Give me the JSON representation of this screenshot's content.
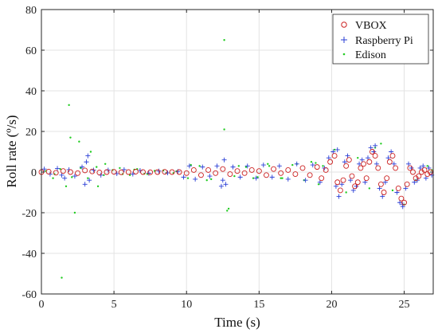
{
  "chart_data": {
    "type": "scatter",
    "xlabel": "Time (s)",
    "ylabel": "Roll rate (º/s)",
    "xlim": [
      0,
      27
    ],
    "ylim": [
      -60,
      80
    ],
    "xticks": [
      0,
      5,
      10,
      15,
      20,
      25
    ],
    "yticks": [
      -60,
      -40,
      -20,
      0,
      20,
      40,
      60,
      80
    ],
    "xtick_labels": [
      "0",
      "5",
      "10",
      "15",
      "20",
      "25"
    ],
    "ytick_labels": [
      "-60",
      "-40",
      "-20",
      "0",
      "20",
      "40",
      "60",
      "80"
    ],
    "grid": true,
    "legend_position": "top-right",
    "series": [
      {
        "name": "VBOX",
        "marker": "circle",
        "color": "#cc2222",
        "x": [
          0.0,
          0.5,
          1.0,
          1.5,
          2.0,
          2.5,
          3.0,
          3.5,
          4.0,
          4.5,
          5.0,
          5.5,
          6.0,
          6.5,
          7.0,
          7.5,
          8.0,
          8.5,
          9.0,
          9.5,
          10.0,
          10.5,
          11.0,
          11.5,
          12.0,
          12.5,
          13.0,
          13.5,
          14.0,
          14.5,
          15.0,
          15.5,
          16.0,
          16.5,
          17.0,
          17.5,
          18.0,
          18.5,
          19.0,
          19.3,
          19.6,
          19.9,
          20.2,
          20.4,
          20.6,
          20.8,
          21.0,
          21.2,
          21.4,
          21.6,
          21.8,
          22.0,
          22.2,
          22.4,
          22.6,
          22.8,
          23.0,
          23.2,
          23.4,
          23.6,
          23.8,
          24.0,
          24.2,
          24.4,
          24.6,
          24.8,
          25.0,
          25.2,
          25.4,
          25.6,
          25.8,
          26.0,
          26.2,
          26.4,
          26.6,
          26.8
        ],
        "y": [
          0.0,
          0.2,
          -0.3,
          0.5,
          0.0,
          -0.5,
          0.8,
          0.3,
          -0.2,
          0.0,
          0.1,
          -0.1,
          0.0,
          0.2,
          0.0,
          -0.1,
          0.0,
          0.1,
          0.0,
          0.0,
          -0.5,
          1.0,
          -1.5,
          1.0,
          -0.5,
          1.5,
          -1.0,
          0.5,
          -0.5,
          1.0,
          0.5,
          -1.5,
          1.5,
          -0.5,
          1.0,
          -1.0,
          2.0,
          -1.5,
          2.5,
          -3.0,
          1.0,
          5.0,
          8.0,
          -5.0,
          -9.0,
          -4.0,
          3.0,
          6.0,
          -2.0,
          -7.0,
          -5.0,
          2.0,
          4.0,
          -3.0,
          5.0,
          10.0,
          8.0,
          2.0,
          -6.0,
          -10.0,
          -3.0,
          5.0,
          8.0,
          2.0,
          -8.0,
          -13.0,
          -15.0,
          -6.0,
          2.0,
          0.0,
          -3.0,
          -2.0,
          0.0,
          1.0,
          -1.0,
          0.0
        ]
      },
      {
        "name": "Raspberry Pi",
        "marker": "plus",
        "color": "#2a3fd6",
        "x": [
          0.2,
          0.6,
          1.1,
          1.4,
          1.9,
          2.3,
          2.8,
          3.1,
          3.3,
          3.6,
          4.1,
          4.6,
          5.2,
          5.7,
          6.3,
          6.8,
          7.4,
          8.1,
          8.7,
          9.4,
          9.8,
          10.2,
          10.6,
          11.1,
          11.6,
          12.1,
          12.5,
          12.7,
          13.2,
          13.7,
          14.2,
          14.8,
          15.3,
          15.9,
          16.4,
          17.0,
          17.6,
          18.2,
          18.7,
          19.2,
          19.5,
          19.8,
          20.1,
          20.3,
          20.5,
          20.7,
          20.9,
          21.1,
          21.3,
          21.5,
          21.7,
          21.9,
          22.1,
          22.3,
          22.5,
          22.7,
          22.9,
          23.1,
          23.3,
          23.5,
          23.7,
          23.9,
          24.1,
          24.3,
          24.5,
          24.7,
          24.9,
          25.1,
          25.3,
          25.5,
          25.7,
          25.9,
          26.1,
          26.3,
          26.5,
          26.7,
          26.9,
          3.2,
          3.0,
          1.6,
          12.6,
          12.4,
          20.4,
          23.0,
          24.9
        ],
        "y": [
          1.5,
          -1.0,
          1.8,
          -1.5,
          1.2,
          -2.0,
          2.5,
          5.0,
          -4.0,
          1.0,
          -1.5,
          1.0,
          -0.8,
          1.2,
          -1.0,
          0.8,
          -0.6,
          0.5,
          -0.4,
          0.3,
          -2.5,
          3.0,
          -3.5,
          2.5,
          -2.0,
          3.0,
          -4.0,
          -6.0,
          2.5,
          -2.5,
          3.0,
          -3.0,
          3.5,
          -2.5,
          3.0,
          -3.5,
          4.0,
          -4.0,
          3.5,
          -5.0,
          2.0,
          7.0,
          10.0,
          -7.0,
          -12.0,
          -6.0,
          5.0,
          8.0,
          -4.0,
          -9.0,
          -7.0,
          4.0,
          6.0,
          -5.0,
          7.0,
          12.0,
          10.0,
          4.0,
          -8.0,
          -12.0,
          -5.0,
          7.0,
          10.0,
          4.0,
          -10.0,
          -15.0,
          -17.0,
          -8.0,
          4.0,
          2.0,
          -5.0,
          -4.0,
          2.0,
          3.0,
          -3.0,
          2.0,
          -1.5,
          8.0,
          -6.0,
          -3.0,
          6.0,
          -7.0,
          11.0,
          13.0,
          -16.0
        ]
      },
      {
        "name": "Edison",
        "marker": "dot",
        "color": "#22cc22",
        "x": [
          1.4,
          1.9,
          2.3,
          2.0,
          2.6,
          3.4,
          3.9,
          1.7,
          4.4,
          0.8,
          5.4,
          6.1,
          6.6,
          7.3,
          8.4,
          9.1,
          10.3,
          11.4,
          12.6,
          12.6,
          12.8,
          12.9,
          13.6,
          14.6,
          15.6,
          16.6,
          17.6,
          18.6,
          19.1,
          19.4,
          20.2,
          21.0,
          21.8,
          22.6,
          23.0,
          23.4,
          24.2,
          25.0,
          25.8,
          26.6,
          26.9,
          0.3,
          0.9,
          1.3,
          2.1,
          2.7,
          3.2,
          3.8,
          4.3,
          4.9,
          5.6,
          6.4,
          7.1,
          7.8,
          8.6,
          9.3,
          10.1,
          10.9,
          11.7,
          13.3,
          14.1,
          14.9,
          15.7,
          16.5,
          17.3,
          18.1,
          18.9
        ],
        "y": [
          -52.0,
          33.0,
          -20.0,
          17.0,
          15.0,
          10.0,
          -7.0,
          -7.0,
          4.0,
          -3.0,
          2.0,
          -1.5,
          1.5,
          -1.0,
          0.8,
          -0.5,
          3.5,
          -4.0,
          65.0,
          21.0,
          -19.0,
          -18.0,
          3.0,
          -3.0,
          4.0,
          -3.0,
          4.0,
          5.0,
          -6.0,
          3.0,
          11.0,
          -10.0,
          7.0,
          -8.0,
          12.0,
          14.0,
          -9.0,
          -16.0,
          -4.0,
          3.0,
          1.0,
          0.5,
          -1.0,
          1.5,
          -2.5,
          2.0,
          -3.0,
          2.5,
          -1.5,
          1.0,
          -1.0,
          1.2,
          -0.8,
          0.6,
          -0.5,
          0.4,
          -3.0,
          3.0,
          -3.5,
          -2.0,
          2.5,
          -2.5,
          3.0,
          -3.0,
          3.5,
          -4.0,
          4.5
        ]
      }
    ]
  }
}
